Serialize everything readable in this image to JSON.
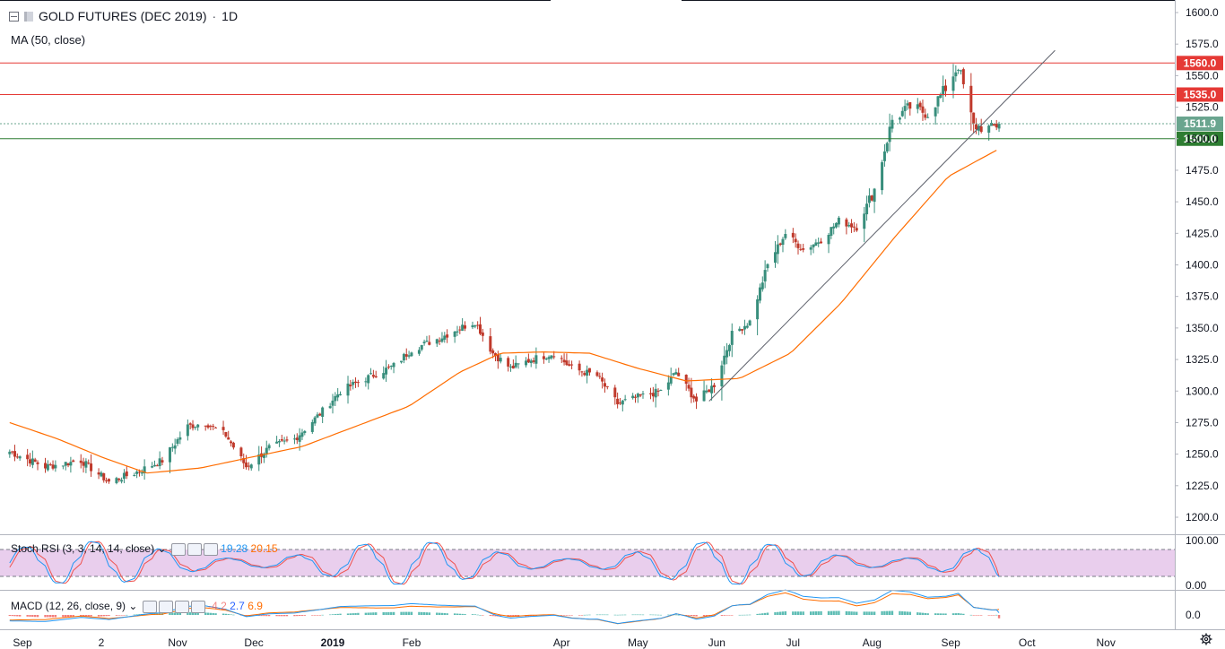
{
  "header": {
    "title": "GOLD FUTURES (DEC 2019)",
    "interval": "1D",
    "ma_label": "MA (50, close)"
  },
  "stoch": {
    "label": "Stoch RSI (3, 3, 14, 14, close)",
    "k_value": "19.28",
    "d_value": "20.15"
  },
  "macd": {
    "label": "MACD (12, 26, close, 9)",
    "hist_value": "-4.2",
    "macd_value": "2.7",
    "signal_value": "6.9"
  },
  "colors": {
    "up": "#26a69a",
    "down": "#ef5350",
    "candle_up": "#388e7c",
    "candle_down": "#c0392b",
    "ma": "#ff6d00",
    "resistance": "#e53935",
    "support": "#2e7d32",
    "current": "#6aa58f",
    "stoch_k": "#2196f3",
    "stoch_d": "#ef5350",
    "stoch_band": "#e1bee7",
    "trendline": "#5d606b"
  },
  "chart_data": {
    "type": "candlestick",
    "title": "GOLD FUTURES (DEC 2019)",
    "interval": "1D",
    "ylim": [
      1190,
      1610
    ],
    "y_ticks": [
      "1600.0",
      "1575.0",
      "1550.0",
      "1525.0",
      "1500.0",
      "1475.0",
      "1450.0",
      "1425.0",
      "1400.0",
      "1375.0",
      "1350.0",
      "1325.0",
      "1300.0",
      "1275.0",
      "1250.0",
      "1225.0",
      "1200.0"
    ],
    "x_ticks": [
      "Sep",
      "2",
      "Nov",
      "Dec",
      "2019",
      "Feb",
      "Apr",
      "May",
      "Jun",
      "Jul",
      "Aug",
      "Sep",
      "Oct",
      "Nov"
    ],
    "price_anchors": [
      [
        "2018-08-27",
        1252
      ],
      [
        "2018-09-10",
        1240
      ],
      [
        "2018-09-24",
        1245
      ],
      [
        "2018-10-05",
        1228
      ],
      [
        "2018-10-15",
        1235
      ],
      [
        "2018-10-26",
        1245
      ],
      [
        "2018-11-05",
        1272
      ],
      [
        "2018-11-12",
        1275
      ],
      [
        "2018-11-20",
        1265
      ],
      [
        "2018-11-28",
        1240
      ],
      [
        "2018-12-07",
        1255
      ],
      [
        "2018-12-17",
        1262
      ],
      [
        "2018-12-27",
        1282
      ],
      [
        "2019-01-04",
        1300
      ],
      [
        "2019-01-14",
        1310
      ],
      [
        "2019-01-25",
        1320
      ],
      [
        "2019-02-01",
        1333
      ],
      [
        "2019-02-12",
        1342
      ],
      [
        "2019-02-20",
        1350
      ],
      [
        "2019-02-26",
        1355
      ],
      [
        "2019-03-05",
        1330
      ],
      [
        "2019-03-12",
        1318
      ],
      [
        "2019-03-20",
        1325
      ],
      [
        "2019-03-29",
        1330
      ],
      [
        "2019-04-05",
        1318
      ],
      [
        "2019-04-15",
        1312
      ],
      [
        "2019-04-23",
        1290
      ],
      [
        "2019-05-01",
        1295
      ],
      [
        "2019-05-10",
        1300
      ],
      [
        "2019-05-16",
        1315
      ],
      [
        "2019-05-24",
        1292
      ],
      [
        "2019-05-31",
        1305
      ],
      [
        "2019-06-07",
        1345
      ],
      [
        "2019-06-14",
        1355
      ],
      [
        "2019-06-21",
        1400
      ],
      [
        "2019-06-28",
        1425
      ],
      [
        "2019-07-05",
        1412
      ],
      [
        "2019-07-12",
        1420
      ],
      [
        "2019-07-19",
        1435
      ],
      [
        "2019-07-26",
        1430
      ],
      [
        "2019-08-02",
        1460
      ],
      [
        "2019-08-09",
        1515
      ],
      [
        "2019-08-16",
        1525
      ],
      [
        "2019-08-23",
        1520
      ],
      [
        "2019-08-30",
        1540
      ],
      [
        "2019-09-04",
        1558
      ],
      [
        "2019-09-10",
        1510
      ],
      [
        "2019-09-17",
        1508
      ],
      [
        "2019-09-20",
        1511.9
      ]
    ],
    "ma_anchors": [
      [
        "2018-08-27",
        1275
      ],
      [
        "2018-09-15",
        1262
      ],
      [
        "2018-10-03",
        1247
      ],
      [
        "2018-10-20",
        1235
      ],
      [
        "2018-11-10",
        1239
      ],
      [
        "2018-12-01",
        1248
      ],
      [
        "2018-12-20",
        1256
      ],
      [
        "2019-01-10",
        1272
      ],
      [
        "2019-01-31",
        1288
      ],
      [
        "2019-02-20",
        1315
      ],
      [
        "2019-03-08",
        1330
      ],
      [
        "2019-03-25",
        1331
      ],
      [
        "2019-04-12",
        1330
      ],
      [
        "2019-05-01",
        1318
      ],
      [
        "2019-05-20",
        1308
      ],
      [
        "2019-06-10",
        1310
      ],
      [
        "2019-06-30",
        1330
      ],
      [
        "2019-07-20",
        1370
      ],
      [
        "2019-08-10",
        1422
      ],
      [
        "2019-08-31",
        1470
      ],
      [
        "2019-09-20",
        1492
      ]
    ],
    "horizontal_levels": [
      {
        "value": 1560.0,
        "label": "1560.0",
        "role": "resistance"
      },
      {
        "value": 1535.0,
        "label": "1535.0",
        "role": "resistance"
      },
      {
        "value": 1511.9,
        "label": "1511.9",
        "role": "current"
      },
      {
        "value": 1500.0,
        "label": "1500.0",
        "role": "support"
      }
    ],
    "trendline": {
      "from": [
        "2019-05-29",
        1292
      ],
      "to": [
        "2019-10-12",
        1570
      ]
    },
    "stoch_rsi": {
      "ylim": [
        0,
        100
      ],
      "y_ticks": [
        "100.00",
        "0.00"
      ],
      "bands": [
        80,
        20
      ],
      "k": 19.28,
      "d": 20.15
    },
    "macd_panel": {
      "y_ticks": [
        "0.0"
      ],
      "macd": 2.7,
      "signal": 6.9,
      "histogram": -4.2
    }
  }
}
